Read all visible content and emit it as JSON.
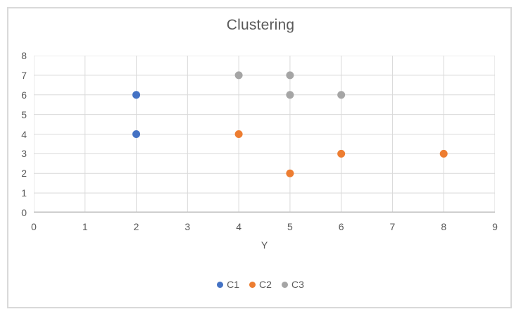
{
  "chart_data": {
    "type": "scatter",
    "title": "Clustering",
    "xlabel": "Y",
    "ylabel": "",
    "xlim": [
      0,
      9
    ],
    "ylim": [
      0,
      8
    ],
    "x_ticks": [
      0,
      1,
      2,
      3,
      4,
      5,
      6,
      7,
      8,
      9
    ],
    "y_ticks": [
      0,
      1,
      2,
      3,
      4,
      5,
      6,
      7,
      8
    ],
    "grid": true,
    "legend_position": "bottom",
    "series": [
      {
        "name": "C1",
        "color": "#4472C4",
        "points": [
          [
            2,
            6
          ],
          [
            2,
            4
          ]
        ]
      },
      {
        "name": "C2",
        "color": "#ED7D31",
        "points": [
          [
            4,
            4
          ],
          [
            5,
            2
          ],
          [
            6,
            3
          ],
          [
            8,
            3
          ]
        ]
      },
      {
        "name": "C3",
        "color": "#A5A5A5",
        "points": [
          [
            4,
            7
          ],
          [
            5,
            7
          ],
          [
            5,
            6
          ],
          [
            6,
            6
          ]
        ]
      }
    ]
  },
  "colors": {
    "gridline": "#D9D9D9",
    "axis_line": "#BFBFBF",
    "text": "#595959",
    "frame_border": "#D9D9D9",
    "background": "#FFFFFF"
  }
}
